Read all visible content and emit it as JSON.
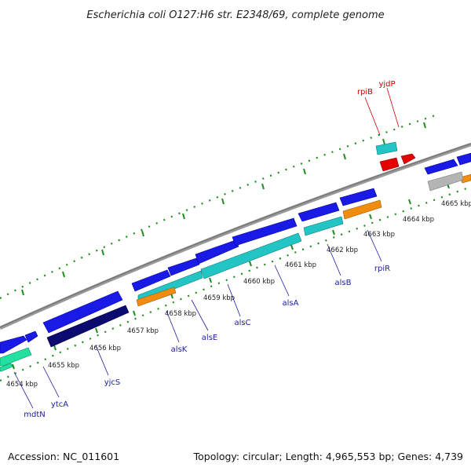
{
  "title": "Escherichia coli O127:H6 str. E2348/69, complete genome",
  "footer": {
    "accession": "Accession: NC_011601",
    "summary": "Topology: circular; Length: 4,965,553 bp; Genes: 4,739"
  },
  "colors": {
    "backbone": "#8c8c8c",
    "tick": "#1e8c1e",
    "forward_gene": "#1a1ae6",
    "reverse_gene": "#22c4c4",
    "dark_gene": "#0a0a70",
    "teal_gene": "#22e0a0",
    "orange_gene": "#f08c10",
    "red_gene": "#e60000",
    "gray_gene": "#b4b4b4",
    "label_blue": "#1a1aa0",
    "label_red": "#cc0000"
  },
  "ticks": [
    {
      "label": "4654 kbp"
    },
    {
      "label": "4655 kbp"
    },
    {
      "label": "4656 kbp"
    },
    {
      "label": "4657 kbp"
    },
    {
      "label": "4658 kbp"
    },
    {
      "label": "4659 kbp"
    },
    {
      "label": "4660 kbp"
    },
    {
      "label": "4661 kbp"
    },
    {
      "label": "4662 kbp"
    },
    {
      "label": "4663 kbp"
    },
    {
      "label": "4664 kbp"
    },
    {
      "label": "4665 kbp"
    }
  ],
  "gene_labels": [
    {
      "name": "mdtN",
      "color": "label_blue"
    },
    {
      "name": "ytcA",
      "color": "label_blue"
    },
    {
      "name": "yjcS",
      "color": "label_blue"
    },
    {
      "name": "alsK",
      "color": "label_blue"
    },
    {
      "name": "alsE",
      "color": "label_blue"
    },
    {
      "name": "alsC",
      "color": "label_blue"
    },
    {
      "name": "alsA",
      "color": "label_blue"
    },
    {
      "name": "alsB",
      "color": "label_blue"
    },
    {
      "name": "rpiR",
      "color": "label_blue"
    },
    {
      "name": "rpiB",
      "color": "label_red"
    },
    {
      "name": "yjdP",
      "color": "label_red"
    }
  ]
}
